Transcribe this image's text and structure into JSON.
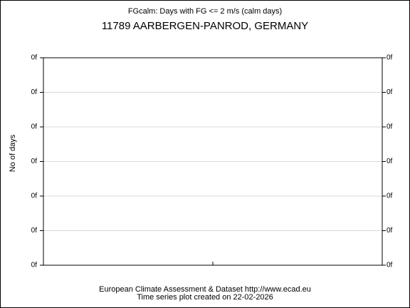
{
  "chart_data": {
    "type": "line",
    "title": "FGcalm: Days with FG <= 2 m/s (calm days)",
    "subtitle": "11789 AARBERGEN-PANROD, GERMANY",
    "ylabel": "No of days",
    "series": [],
    "ylim": [
      0,
      6
    ],
    "yticks": [
      {
        "value": 0,
        "label": "0f"
      },
      {
        "value": 1,
        "label": "0f"
      },
      {
        "value": 2,
        "label": "0f"
      },
      {
        "value": 3,
        "label": "0f"
      },
      {
        "value": 4,
        "label": "0f"
      },
      {
        "value": 5,
        "label": "0f"
      },
      {
        "value": 6,
        "label": "0f"
      }
    ],
    "y2lim": [
      0,
      6
    ],
    "y2ticks": [
      {
        "value": 0,
        "label": "0f"
      },
      {
        "value": 1,
        "label": "0f"
      },
      {
        "value": 2,
        "label": "0f"
      },
      {
        "value": 3,
        "label": "0f"
      },
      {
        "value": 4,
        "label": "0f"
      },
      {
        "value": 5,
        "label": "0f"
      },
      {
        "value": 6,
        "label": "0f"
      }
    ],
    "grid": true,
    "footer": [
      "European Climate Assessment & Dataset  http://www.ecad.eu",
      "Time series plot created on 22-02-2026"
    ]
  }
}
